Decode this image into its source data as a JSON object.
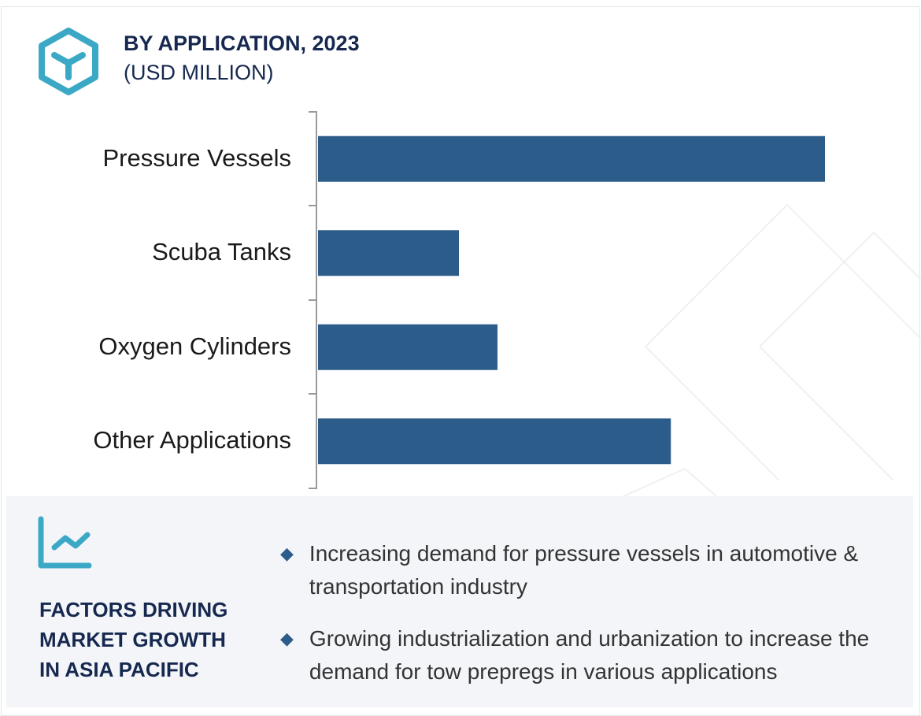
{
  "chart_data": {
    "type": "bar",
    "orientation": "horizontal",
    "title": "BY APPLICATION, 2023",
    "subtitle": "(USD MILLION)",
    "categories": [
      "Pressure Vessels",
      "Scuba Tanks",
      "Oxygen Cylinders",
      "Other Applications"
    ],
    "values": [
      100,
      27.8,
      35.4,
      69.6
    ],
    "value_axis_labels": false,
    "grid": false,
    "bar_color": "#2c5c8a"
  },
  "colors": {
    "icon": "#3ba9c6",
    "heading": "#16284f",
    "panel_bg": "#f3f5f9"
  },
  "icons": {
    "logo": "hexagon-y-icon",
    "factors": "line-chart-icon",
    "bullet": "diamond-icon"
  },
  "factors": {
    "title_lines": [
      "FACTORS DRIVING",
      "MARKET GROWTH",
      "IN ASIA PACIFIC"
    ],
    "bullets": [
      "Increasing demand for pressure vessels in automotive & transportation industry",
      "Growing industrialization and urbanization to increase the demand for tow prepregs in various applications"
    ]
  }
}
